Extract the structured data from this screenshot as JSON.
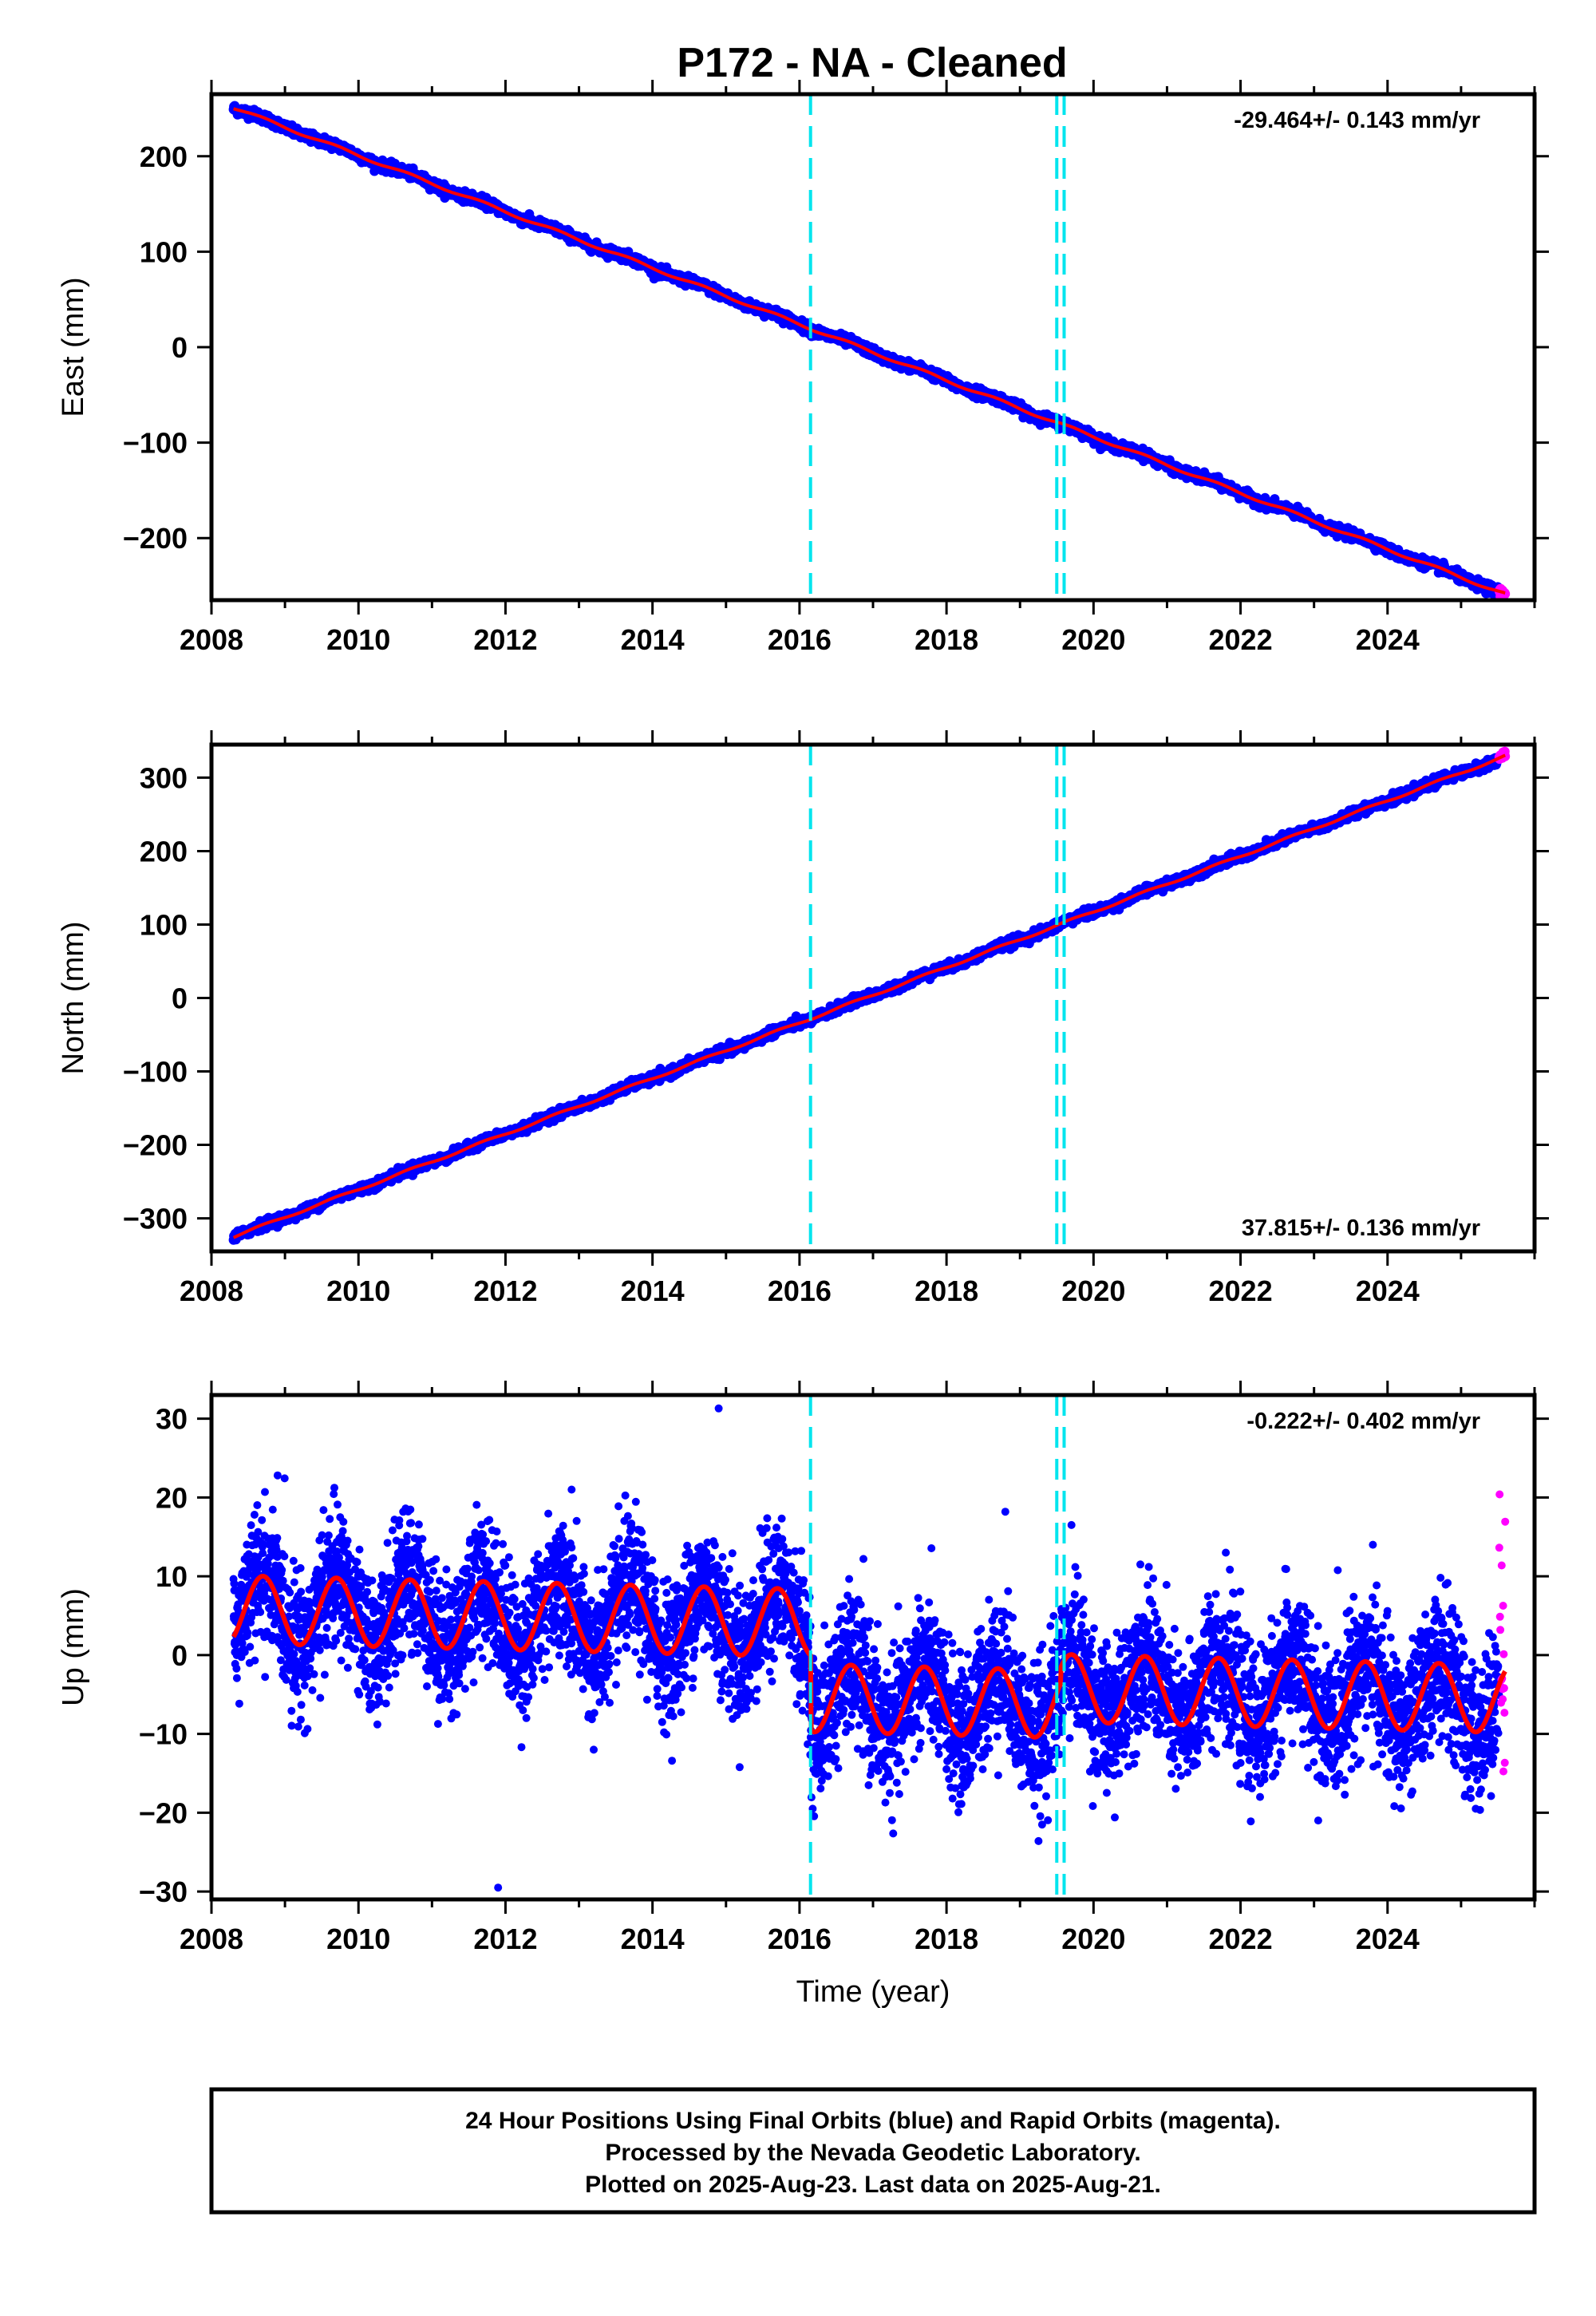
{
  "title": "P172  - NA - Cleaned",
  "footer": {
    "lines": [
      "24 Hour Positions Using Final Orbits (blue) and Rapid Orbits (magenta).",
      "Processed by the Nevada Geodetic Laboratory.",
      "Plotted on 2025-Aug-23. Last data on 2025-Aug-21."
    ]
  },
  "colors": {
    "final_orbits": "#0000ff",
    "rapid_orbits": "#ff00ff",
    "model_fit": "#ff0000",
    "event_lines": "#00e5ee",
    "frame": "#000000"
  },
  "chart_data": [
    {
      "type": "scatter",
      "component": "East",
      "ylabel": "East (mm)",
      "xlabel": "",
      "xlim": [
        2008.0,
        2026.0
      ],
      "ylim": [
        -265,
        265
      ],
      "x_ticks": [
        2008,
        2010,
        2012,
        2014,
        2016,
        2018,
        2020,
        2022,
        2024
      ],
      "y_ticks": [
        -200,
        -100,
        0,
        100,
        200
      ],
      "y_tick_labels": [
        "−200",
        "−100",
        "0",
        "100",
        "200"
      ],
      "rate": "-29.464+/- 0.143 mm/yr",
      "rate_position": "top-right",
      "data_range": [
        2008.3,
        2025.6
      ],
      "start_value": 251,
      "slope": -29.464,
      "seasonal_amplitude": 1.5,
      "scatter": 2.5,
      "offsets": [],
      "event_lines": [
        2016.15,
        2019.5,
        2019.6
      ],
      "grid": false
    },
    {
      "type": "scatter",
      "component": "North",
      "ylabel": "North (mm)",
      "xlabel": "",
      "xlim": [
        2008.0,
        2026.0
      ],
      "ylim": [
        -345,
        345
      ],
      "x_ticks": [
        2008,
        2010,
        2012,
        2014,
        2016,
        2018,
        2020,
        2022,
        2024
      ],
      "y_ticks": [
        -300,
        -200,
        -100,
        0,
        100,
        200,
        300
      ],
      "y_tick_labels": [
        "−300",
        "−200",
        "−100",
        "0",
        "100",
        "200",
        "300"
      ],
      "rate": "37.815+/- 0.136 mm/yr",
      "rate_position": "bottom-right",
      "data_range": [
        2008.3,
        2025.6
      ],
      "start_value": -325,
      "slope": 37.815,
      "seasonal_amplitude": 1.5,
      "scatter": 3.0,
      "offsets": [],
      "event_lines": [
        2016.15,
        2019.5,
        2019.6
      ],
      "grid": false
    },
    {
      "type": "scatter",
      "component": "Up",
      "ylabel": "Up (mm)",
      "xlabel": "Time (year)",
      "xlim": [
        2008.0,
        2026.0
      ],
      "ylim": [
        -31,
        33
      ],
      "x_ticks": [
        2008,
        2010,
        2012,
        2014,
        2016,
        2018,
        2020,
        2022,
        2024
      ],
      "y_ticks": [
        -30,
        -20,
        -10,
        0,
        10,
        20,
        30
      ],
      "y_tick_labels": [
        "−30",
        "−20",
        "−10",
        "0",
        "10",
        "20",
        "30"
      ],
      "rate": "-0.222+/- 0.402 mm/yr",
      "rate_position": "top-right",
      "data_range": [
        2008.3,
        2025.6
      ],
      "start_value": 5.8,
      "slope": -0.222,
      "seasonal_amplitude": 4.3,
      "scatter": 4.2,
      "offsets": [
        {
          "time": 2016.15,
          "step": -9.5
        },
        {
          "time": 2019.55,
          "step": 2.0
        }
      ],
      "event_lines": [
        2016.15,
        2019.5,
        2019.6
      ],
      "outliers": [
        {
          "x": 2014.9,
          "y": 31.3
        },
        {
          "x": 2011.9,
          "y": -29.5
        },
        {
          "x": 2008.9,
          "y": 22.8
        },
        {
          "x": 2012.9,
          "y": 21.0
        },
        {
          "x": 2018.8,
          "y": 18.2
        },
        {
          "x": 2019.7,
          "y": 16.5
        },
        {
          "x": 2019.3,
          "y": -21.5
        },
        {
          "x": 2021.8,
          "y": 13.0
        },
        {
          "x": 2023.8,
          "y": 14.0
        },
        {
          "x": 2013.2,
          "y": -12.0
        },
        {
          "x": 2025.2,
          "y": -19.5
        }
      ],
      "grid": false
    }
  ]
}
